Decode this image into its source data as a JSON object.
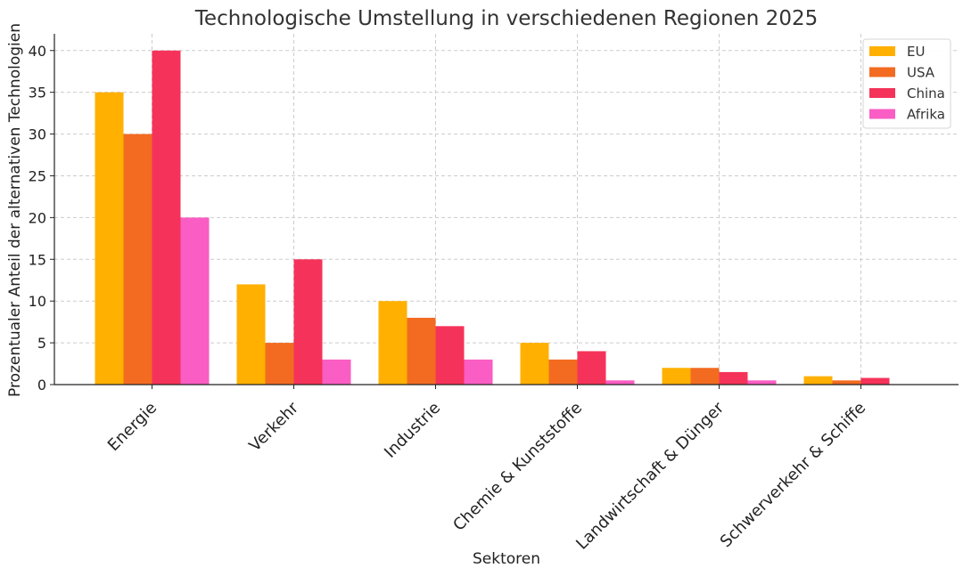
{
  "chart_data": {
    "type": "bar",
    "title": "Technologische Umstellung in verschiedenen Regionen 2025",
    "xlabel": "Sektoren",
    "ylabel": "Prozentualer Anteil der alternativen Technologien",
    "categories": [
      "Energie",
      "Verkehr",
      "Industrie",
      "Chemie & Kunststoffe",
      "Landwirtschaft & Dünger",
      "Schwerverkehr & Schiffe"
    ],
    "series": [
      {
        "name": "EU",
        "color": "#FFB000",
        "values": [
          35,
          12,
          10,
          5,
          2,
          1
        ]
      },
      {
        "name": "USA",
        "color": "#F26B21",
        "values": [
          30,
          5,
          8,
          3,
          2,
          0.5
        ]
      },
      {
        "name": "China",
        "color": "#F5335A",
        "values": [
          40,
          15,
          7,
          4,
          1.5,
          0.8
        ]
      },
      {
        "name": "Afrika",
        "color": "#FA5DC3",
        "values": [
          20,
          3,
          3,
          0.5,
          0.5,
          0
        ]
      }
    ],
    "ylim": [
      0,
      42
    ],
    "yticks": [
      0,
      5,
      10,
      15,
      20,
      25,
      30,
      35,
      40
    ],
    "grid": true,
    "legend_position": "top-right"
  }
}
